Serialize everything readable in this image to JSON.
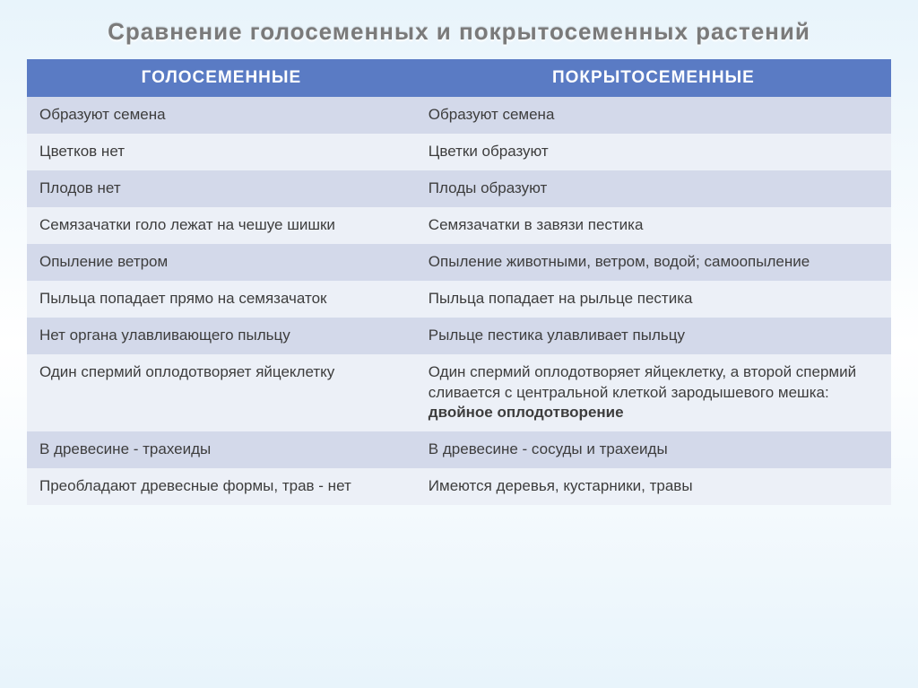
{
  "title": "Сравнение голосеменных и покрытосеменных растений",
  "headers": {
    "left": "ГОЛОСЕМЕННЫЕ",
    "right": "ПОКРЫТОСЕМЕННЫЕ"
  },
  "rows": [
    {
      "left": "Образуют семена",
      "right": "Образуют семена"
    },
    {
      "left": "Цветков нет",
      "right": "Цветки образуют"
    },
    {
      "left": "Плодов нет",
      "right": "Плоды образуют"
    },
    {
      "left": "Семязачатки голо лежат на чешуе шишки",
      "right": "Семязачатки в завязи пестика"
    },
    {
      "left": "Опыление ветром",
      "right": "Опыление животными, ветром, водой; самоопыление"
    },
    {
      "left": "Пыльца попадает прямо на семязачаток",
      "right": "Пыльца попадает на рыльце пестика"
    },
    {
      "left": "Нет органа улавливающего пыльцу",
      "right": "Рыльце пестика улавливает пыльцу"
    },
    {
      "left": "Один спермий оплодотворяет яйцеклетку",
      "right_prefix": "Один спермий оплодотворяет яйцеклетку, а второй спермий сливается с центральной клеткой зародышевого мешка: ",
      "right_bold": "двойное оплодотворение"
    },
    {
      "left": "В древесине - трахеиды",
      "right": "В древесине - сосуды и трахеиды"
    },
    {
      "left": "Преобладают древесные формы, трав - нет",
      "right": "Имеются деревья, кустарники, травы"
    }
  ],
  "colors": {
    "header_bg": "#5a7bc4",
    "row_odd_bg": "#d3d9ea",
    "row_even_bg": "#ecf0f7",
    "text": "#3d3d3d",
    "title": "#7a7a7a"
  },
  "typography": {
    "title_fontsize": 26,
    "header_fontsize": 19,
    "cell_fontsize": 17
  }
}
